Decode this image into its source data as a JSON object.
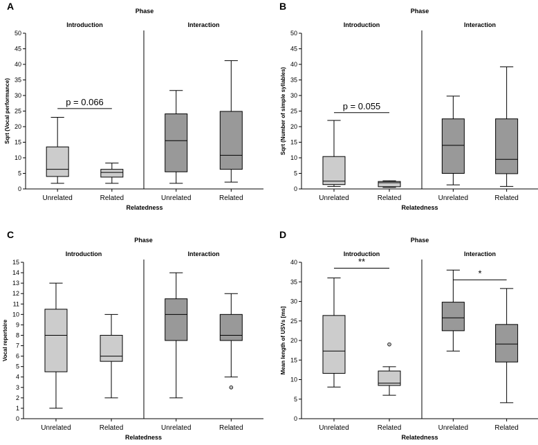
{
  "chart_data": [
    {
      "label": "A",
      "type": "boxplot",
      "super_title": "Phase",
      "ylabel": "Sqrt (Vocal performance)",
      "xlabel": "Relatedness",
      "ylim": [
        0,
        50
      ],
      "yticks": [
        0,
        5,
        10,
        15,
        20,
        25,
        30,
        35,
        40,
        45,
        50
      ],
      "colors": {
        "Introduction": "#cccccc",
        "Interaction": "#999999"
      },
      "panels": [
        {
          "title": "Introduction",
          "boxes": [
            {
              "category": "Unrelated",
              "whisker_low": 1.8,
              "q1": 4.0,
              "median": 6.3,
              "q3": 13.5,
              "whisker_high": 23.0,
              "outliers": []
            },
            {
              "category": "Related",
              "whisker_low": 1.8,
              "q1": 3.8,
              "median": 5.3,
              "q3": 6.3,
              "whisker_high": 8.3,
              "outliers": []
            }
          ],
          "annotations": [
            {
              "text": "p = 0.066",
              "from": 0,
              "to": 1,
              "y": 25.8
            }
          ]
        },
        {
          "title": "Interaction",
          "boxes": [
            {
              "category": "Unrelated",
              "whisker_low": 1.8,
              "q1": 5.5,
              "median": 15.5,
              "q3": 24.1,
              "whisker_high": 31.6,
              "outliers": []
            },
            {
              "category": "Related",
              "whisker_low": 2.2,
              "q1": 6.3,
              "median": 10.8,
              "q3": 24.9,
              "whisker_high": 41.2,
              "outliers": []
            }
          ],
          "annotations": []
        }
      ]
    },
    {
      "label": "B",
      "type": "boxplot",
      "super_title": "Phase",
      "ylabel": "Sqrt (Number of simple syllables)",
      "xlabel": "Relatedness",
      "ylim": [
        0,
        50
      ],
      "yticks": [
        0,
        5,
        10,
        15,
        20,
        25,
        30,
        35,
        40,
        45,
        50
      ],
      "colors": {
        "Introduction": "#cccccc",
        "Interaction": "#999999"
      },
      "panels": [
        {
          "title": "Introduction",
          "boxes": [
            {
              "category": "Unrelated",
              "whisker_low": 0.8,
              "q1": 1.4,
              "median": 2.5,
              "q3": 10.4,
              "whisker_high": 22.0,
              "outliers": []
            },
            {
              "category": "Related",
              "whisker_low": 0.5,
              "q1": 0.7,
              "median": 2.0,
              "q3": 2.4,
              "whisker_high": 2.6,
              "outliers": []
            }
          ],
          "annotations": [
            {
              "text": "p = 0.055",
              "from": 0,
              "to": 1,
              "y": 24.5
            }
          ]
        },
        {
          "title": "Interaction",
          "boxes": [
            {
              "category": "Unrelated",
              "whisker_low": 1.3,
              "q1": 5.0,
              "median": 14.0,
              "q3": 22.5,
              "whisker_high": 29.8,
              "outliers": []
            },
            {
              "category": "Related",
              "whisker_low": 0.8,
              "q1": 4.9,
              "median": 9.5,
              "q3": 22.5,
              "whisker_high": 39.2,
              "outliers": []
            }
          ],
          "annotations": []
        }
      ]
    },
    {
      "label": "C",
      "type": "boxplot",
      "super_title": "Phase",
      "ylabel": "Vocal repertoire",
      "xlabel": "Relatedness",
      "ylim": [
        0,
        15
      ],
      "yticks": [
        0,
        1,
        2,
        3,
        4,
        5,
        6,
        7,
        8,
        9,
        10,
        11,
        12,
        13,
        14,
        15
      ],
      "colors": {
        "Introduction": "#cccccc",
        "Interaction": "#999999"
      },
      "panels": [
        {
          "title": "Introduction",
          "boxes": [
            {
              "category": "Unrelated",
              "whisker_low": 1.0,
              "q1": 4.5,
              "median": 8.0,
              "q3": 10.5,
              "whisker_high": 13.0,
              "outliers": []
            },
            {
              "category": "Related",
              "whisker_low": 2.0,
              "q1": 5.5,
              "median": 6.0,
              "q3": 8.0,
              "whisker_high": 10.0,
              "outliers": []
            }
          ],
          "annotations": []
        },
        {
          "title": "Interaction",
          "boxes": [
            {
              "category": "Unrelated",
              "whisker_low": 2.0,
              "q1": 7.5,
              "median": 10.0,
              "q3": 11.5,
              "whisker_high": 14.0,
              "outliers": []
            },
            {
              "category": "Related",
              "whisker_low": 4.0,
              "q1": 7.5,
              "median": 8.0,
              "q3": 10.0,
              "whisker_high": 12.0,
              "outliers": [
                3.0
              ]
            }
          ],
          "annotations": []
        }
      ]
    },
    {
      "label": "D",
      "type": "boxplot",
      "super_title": "Phase",
      "ylabel": "Mean length of USVs [ms]",
      "xlabel": "Relatedness",
      "ylim": [
        0,
        40
      ],
      "yticks": [
        0,
        5,
        10,
        15,
        20,
        25,
        30,
        35,
        40
      ],
      "colors": {
        "Introduction": "#cccccc",
        "Interaction": "#999999"
      },
      "panels": [
        {
          "title": "Introduction",
          "boxes": [
            {
              "category": "Unrelated",
              "whisker_low": 8.1,
              "q1": 11.6,
              "median": 17.3,
              "q3": 26.4,
              "whisker_high": 36.0,
              "outliers": []
            },
            {
              "category": "Related",
              "whisker_low": 6.0,
              "q1": 8.5,
              "median": 9.1,
              "q3": 12.2,
              "whisker_high": 13.3,
              "outliers": [
                19.0
              ]
            }
          ],
          "annotations": [
            {
              "text": "**",
              "from": 0,
              "to": 1,
              "y": 38.5
            }
          ]
        },
        {
          "title": "Interaction",
          "boxes": [
            {
              "category": "Unrelated",
              "whisker_low": 17.3,
              "q1": 22.5,
              "median": 25.8,
              "q3": 29.8,
              "whisker_high": 38.0,
              "outliers": []
            },
            {
              "category": "Related",
              "whisker_low": 4.1,
              "q1": 14.5,
              "median": 19.1,
              "q3": 24.1,
              "whisker_high": 33.3,
              "outliers": []
            }
          ],
          "annotations": [
            {
              "text": "*",
              "from": 0,
              "to": 1,
              "y": 35.5
            }
          ]
        }
      ]
    }
  ]
}
